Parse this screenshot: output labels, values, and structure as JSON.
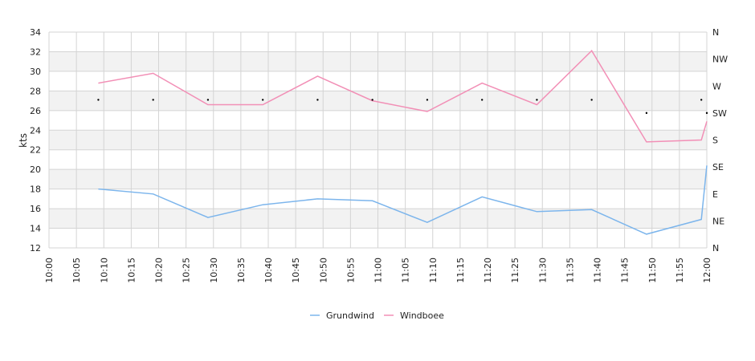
{
  "chart_data": {
    "type": "line",
    "ylabel": "kts",
    "ylim": [
      12,
      34
    ],
    "yticks": [
      "34",
      "32",
      "30",
      "28",
      "26",
      "24",
      "22",
      "20",
      "18",
      "16",
      "14",
      "12"
    ],
    "x_range": [
      "10:00",
      "12:00"
    ],
    "xticks": [
      "10:00",
      "10:05",
      "10:10",
      "10:15",
      "10:20",
      "10:25",
      "10:30",
      "10:35",
      "10:40",
      "10:45",
      "10:50",
      "10:55",
      "11:00",
      "11:05",
      "11:10",
      "11:15",
      "11:20",
      "11:25",
      "11:30",
      "11:35",
      "11:40",
      "11:45",
      "11:50",
      "11:55",
      "12:00"
    ],
    "direction_axis": {
      "labels": [
        "N",
        "NW",
        "W",
        "SW",
        "S",
        "SE",
        "E",
        "NE",
        "N"
      ],
      "top_degrees": 360,
      "bottom_degrees": 0
    },
    "series": [
      {
        "name": "Grundwind",
        "color": "#7cb5ec",
        "points": [
          {
            "x": "10:09",
            "y": 18.0
          },
          {
            "x": "10:19",
            "y": 17.5
          },
          {
            "x": "10:29",
            "y": 15.1
          },
          {
            "x": "10:39",
            "y": 16.4
          },
          {
            "x": "10:49",
            "y": 17.0
          },
          {
            "x": "10:59",
            "y": 16.8
          },
          {
            "x": "11:09",
            "y": 14.6
          },
          {
            "x": "11:19",
            "y": 17.2
          },
          {
            "x": "11:29",
            "y": 15.7
          },
          {
            "x": "11:39",
            "y": 15.9
          },
          {
            "x": "11:49",
            "y": 13.4
          },
          {
            "x": "11:59",
            "y": 14.9
          },
          {
            "x": "12:00",
            "y": 20.4
          }
        ]
      },
      {
        "name": "Windboee",
        "color": "#f28fb6",
        "points": [
          {
            "x": "10:09",
            "y": 28.8
          },
          {
            "x": "10:19",
            "y": 29.8
          },
          {
            "x": "10:29",
            "y": 26.6
          },
          {
            "x": "10:39",
            "y": 26.6
          },
          {
            "x": "10:49",
            "y": 29.5
          },
          {
            "x": "10:59",
            "y": 27.0
          },
          {
            "x": "11:09",
            "y": 25.9
          },
          {
            "x": "11:19",
            "y": 28.8
          },
          {
            "x": "11:29",
            "y": 26.6
          },
          {
            "x": "11:39",
            "y": 32.1
          },
          {
            "x": "11:49",
            "y": 22.8
          },
          {
            "x": "11:59",
            "y": 23.0
          },
          {
            "x": "12:00",
            "y": 24.9
          }
        ]
      }
    ],
    "direction_points": [
      {
        "x": "10:09",
        "deg": 247
      },
      {
        "x": "10:19",
        "deg": 247
      },
      {
        "x": "10:29",
        "deg": 247
      },
      {
        "x": "10:39",
        "deg": 247
      },
      {
        "x": "10:49",
        "deg": 247
      },
      {
        "x": "10:59",
        "deg": 247
      },
      {
        "x": "11:09",
        "deg": 247
      },
      {
        "x": "11:19",
        "deg": 247
      },
      {
        "x": "11:29",
        "deg": 247
      },
      {
        "x": "11:39",
        "deg": 247
      },
      {
        "x": "11:49",
        "deg": 225
      },
      {
        "x": "11:59",
        "deg": 247
      },
      {
        "x": "12:00",
        "deg": 225
      }
    ],
    "grid": true,
    "legend_position": "bottom-center",
    "band_color": "#f2f2f2",
    "grid_color": "#d4d4d4"
  }
}
